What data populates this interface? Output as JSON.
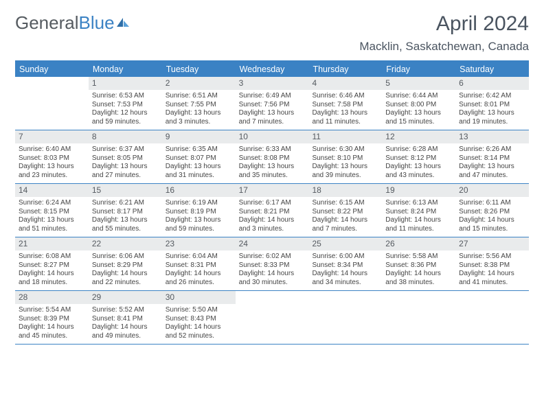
{
  "logo": {
    "text1": "General",
    "text2": "Blue"
  },
  "title": "April 2024",
  "location": "Macklin, Saskatchewan, Canada",
  "colors": {
    "header_bg": "#3b82c4",
    "header_text": "#ffffff",
    "daynum_bg": "#e9ebec",
    "body_text": "#444444",
    "title_text": "#4a5460"
  },
  "weekdays": [
    "Sunday",
    "Monday",
    "Tuesday",
    "Wednesday",
    "Thursday",
    "Friday",
    "Saturday"
  ],
  "weeks": [
    [
      {
        "day": "",
        "sunrise": "",
        "sunset": "",
        "daylight1": "",
        "daylight2": ""
      },
      {
        "day": "1",
        "sunrise": "Sunrise: 6:53 AM",
        "sunset": "Sunset: 7:53 PM",
        "daylight1": "Daylight: 12 hours",
        "daylight2": "and 59 minutes."
      },
      {
        "day": "2",
        "sunrise": "Sunrise: 6:51 AM",
        "sunset": "Sunset: 7:55 PM",
        "daylight1": "Daylight: 13 hours",
        "daylight2": "and 3 minutes."
      },
      {
        "day": "3",
        "sunrise": "Sunrise: 6:49 AM",
        "sunset": "Sunset: 7:56 PM",
        "daylight1": "Daylight: 13 hours",
        "daylight2": "and 7 minutes."
      },
      {
        "day": "4",
        "sunrise": "Sunrise: 6:46 AM",
        "sunset": "Sunset: 7:58 PM",
        "daylight1": "Daylight: 13 hours",
        "daylight2": "and 11 minutes."
      },
      {
        "day": "5",
        "sunrise": "Sunrise: 6:44 AM",
        "sunset": "Sunset: 8:00 PM",
        "daylight1": "Daylight: 13 hours",
        "daylight2": "and 15 minutes."
      },
      {
        "day": "6",
        "sunrise": "Sunrise: 6:42 AM",
        "sunset": "Sunset: 8:01 PM",
        "daylight1": "Daylight: 13 hours",
        "daylight2": "and 19 minutes."
      }
    ],
    [
      {
        "day": "7",
        "sunrise": "Sunrise: 6:40 AM",
        "sunset": "Sunset: 8:03 PM",
        "daylight1": "Daylight: 13 hours",
        "daylight2": "and 23 minutes."
      },
      {
        "day": "8",
        "sunrise": "Sunrise: 6:37 AM",
        "sunset": "Sunset: 8:05 PM",
        "daylight1": "Daylight: 13 hours",
        "daylight2": "and 27 minutes."
      },
      {
        "day": "9",
        "sunrise": "Sunrise: 6:35 AM",
        "sunset": "Sunset: 8:07 PM",
        "daylight1": "Daylight: 13 hours",
        "daylight2": "and 31 minutes."
      },
      {
        "day": "10",
        "sunrise": "Sunrise: 6:33 AM",
        "sunset": "Sunset: 8:08 PM",
        "daylight1": "Daylight: 13 hours",
        "daylight2": "and 35 minutes."
      },
      {
        "day": "11",
        "sunrise": "Sunrise: 6:30 AM",
        "sunset": "Sunset: 8:10 PM",
        "daylight1": "Daylight: 13 hours",
        "daylight2": "and 39 minutes."
      },
      {
        "day": "12",
        "sunrise": "Sunrise: 6:28 AM",
        "sunset": "Sunset: 8:12 PM",
        "daylight1": "Daylight: 13 hours",
        "daylight2": "and 43 minutes."
      },
      {
        "day": "13",
        "sunrise": "Sunrise: 6:26 AM",
        "sunset": "Sunset: 8:14 PM",
        "daylight1": "Daylight: 13 hours",
        "daylight2": "and 47 minutes."
      }
    ],
    [
      {
        "day": "14",
        "sunrise": "Sunrise: 6:24 AM",
        "sunset": "Sunset: 8:15 PM",
        "daylight1": "Daylight: 13 hours",
        "daylight2": "and 51 minutes."
      },
      {
        "day": "15",
        "sunrise": "Sunrise: 6:21 AM",
        "sunset": "Sunset: 8:17 PM",
        "daylight1": "Daylight: 13 hours",
        "daylight2": "and 55 minutes."
      },
      {
        "day": "16",
        "sunrise": "Sunrise: 6:19 AM",
        "sunset": "Sunset: 8:19 PM",
        "daylight1": "Daylight: 13 hours",
        "daylight2": "and 59 minutes."
      },
      {
        "day": "17",
        "sunrise": "Sunrise: 6:17 AM",
        "sunset": "Sunset: 8:21 PM",
        "daylight1": "Daylight: 14 hours",
        "daylight2": "and 3 minutes."
      },
      {
        "day": "18",
        "sunrise": "Sunrise: 6:15 AM",
        "sunset": "Sunset: 8:22 PM",
        "daylight1": "Daylight: 14 hours",
        "daylight2": "and 7 minutes."
      },
      {
        "day": "19",
        "sunrise": "Sunrise: 6:13 AM",
        "sunset": "Sunset: 8:24 PM",
        "daylight1": "Daylight: 14 hours",
        "daylight2": "and 11 minutes."
      },
      {
        "day": "20",
        "sunrise": "Sunrise: 6:11 AM",
        "sunset": "Sunset: 8:26 PM",
        "daylight1": "Daylight: 14 hours",
        "daylight2": "and 15 minutes."
      }
    ],
    [
      {
        "day": "21",
        "sunrise": "Sunrise: 6:08 AM",
        "sunset": "Sunset: 8:27 PM",
        "daylight1": "Daylight: 14 hours",
        "daylight2": "and 18 minutes."
      },
      {
        "day": "22",
        "sunrise": "Sunrise: 6:06 AM",
        "sunset": "Sunset: 8:29 PM",
        "daylight1": "Daylight: 14 hours",
        "daylight2": "and 22 minutes."
      },
      {
        "day": "23",
        "sunrise": "Sunrise: 6:04 AM",
        "sunset": "Sunset: 8:31 PM",
        "daylight1": "Daylight: 14 hours",
        "daylight2": "and 26 minutes."
      },
      {
        "day": "24",
        "sunrise": "Sunrise: 6:02 AM",
        "sunset": "Sunset: 8:33 PM",
        "daylight1": "Daylight: 14 hours",
        "daylight2": "and 30 minutes."
      },
      {
        "day": "25",
        "sunrise": "Sunrise: 6:00 AM",
        "sunset": "Sunset: 8:34 PM",
        "daylight1": "Daylight: 14 hours",
        "daylight2": "and 34 minutes."
      },
      {
        "day": "26",
        "sunrise": "Sunrise: 5:58 AM",
        "sunset": "Sunset: 8:36 PM",
        "daylight1": "Daylight: 14 hours",
        "daylight2": "and 38 minutes."
      },
      {
        "day": "27",
        "sunrise": "Sunrise: 5:56 AM",
        "sunset": "Sunset: 8:38 PM",
        "daylight1": "Daylight: 14 hours",
        "daylight2": "and 41 minutes."
      }
    ],
    [
      {
        "day": "28",
        "sunrise": "Sunrise: 5:54 AM",
        "sunset": "Sunset: 8:39 PM",
        "daylight1": "Daylight: 14 hours",
        "daylight2": "and 45 minutes."
      },
      {
        "day": "29",
        "sunrise": "Sunrise: 5:52 AM",
        "sunset": "Sunset: 8:41 PM",
        "daylight1": "Daylight: 14 hours",
        "daylight2": "and 49 minutes."
      },
      {
        "day": "30",
        "sunrise": "Sunrise: 5:50 AM",
        "sunset": "Sunset: 8:43 PM",
        "daylight1": "Daylight: 14 hours",
        "daylight2": "and 52 minutes."
      },
      {
        "day": "",
        "sunrise": "",
        "sunset": "",
        "daylight1": "",
        "daylight2": ""
      },
      {
        "day": "",
        "sunrise": "",
        "sunset": "",
        "daylight1": "",
        "daylight2": ""
      },
      {
        "day": "",
        "sunrise": "",
        "sunset": "",
        "daylight1": "",
        "daylight2": ""
      },
      {
        "day": "",
        "sunrise": "",
        "sunset": "",
        "daylight1": "",
        "daylight2": ""
      }
    ]
  ]
}
